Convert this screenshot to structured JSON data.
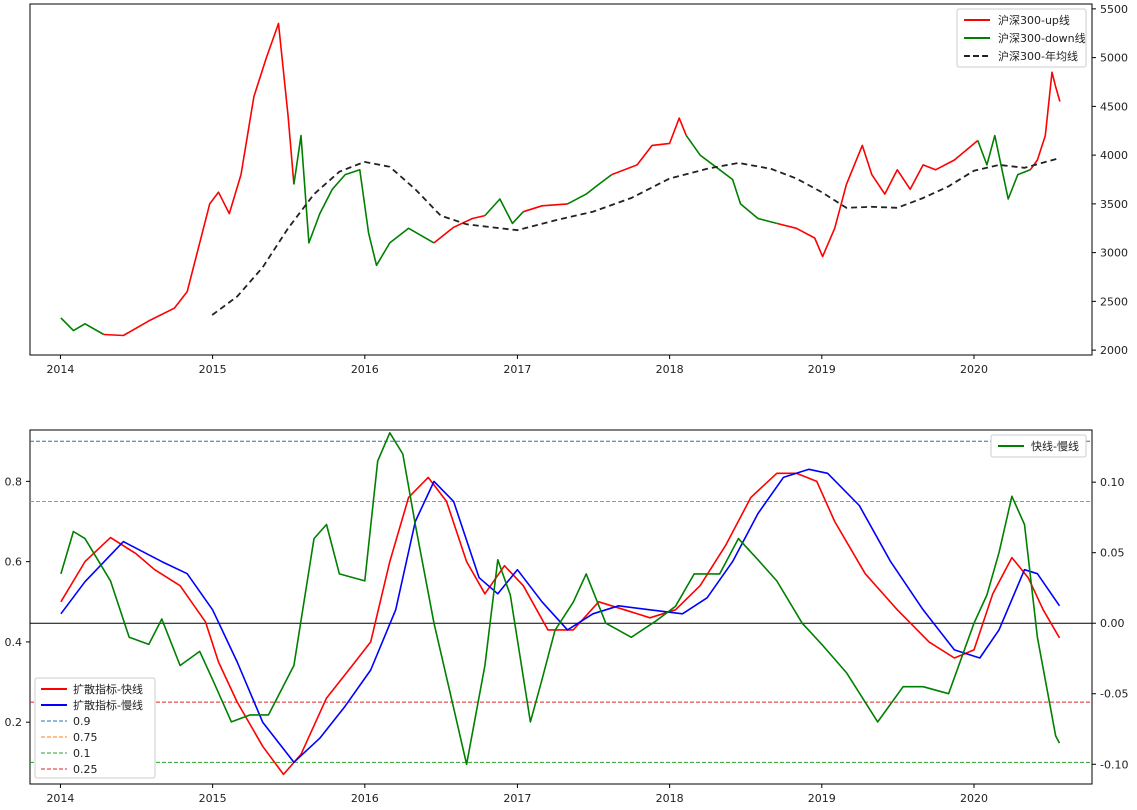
{
  "chart_data": [
    {
      "type": "line",
      "title": "",
      "xlabel": "",
      "ylabel": "",
      "xlim": [
        "2013-10-20",
        "2020-10-10"
      ],
      "ylim": [
        1950,
        5550
      ],
      "y_axis_side": "right",
      "xticks": [
        "2014",
        "2015",
        "2016",
        "2017",
        "2018",
        "2019",
        "2020"
      ],
      "yticks": [
        2000,
        2500,
        3000,
        3500,
        4000,
        4500,
        5000,
        5500
      ],
      "legend": {
        "position": "top-right",
        "entries": [
          "沪深300-up线",
          "沪深300-down线",
          "沪深300-年均线"
        ]
      },
      "colors": {
        "up": "#ff0000",
        "down": "#008000",
        "avg": "#222222"
      },
      "series": [
        {
          "name": "沪深300-up线",
          "style": "solid",
          "color": "#ff0000",
          "segments": [
            {
              "x": [
                "2014-04-15",
                "2014-06-01",
                "2014-08-01",
                "2014-10-01",
                "2014-11-01",
                "2014-12-01",
                "2014-12-25",
                "2015-01-15",
                "2015-02-10",
                "2015-03-10",
                "2015-04-10",
                "2015-05-10",
                "2015-06-08",
                "2015-07-01",
                "2015-07-15"
              ],
              "values": [
                2160,
                2150,
                2300,
                2430,
                2600,
                3100,
                3500,
                3620,
                3400,
                3800,
                4600,
                5000,
                5350,
                4400,
                3700
              ]
            },
            {
              "x": [
                "2016-06-15",
                "2016-08-01",
                "2016-09-15",
                "2016-10-15"
              ],
              "values": [
                3100,
                3260,
                3350,
                3380
              ]
            },
            {
              "x": [
                "2017-01-15",
                "2017-03-01",
                "2017-05-01"
              ],
              "values": [
                3420,
                3480,
                3500
              ]
            },
            {
              "x": [
                "2017-08-15",
                "2017-10-15",
                "2017-11-20",
                "2018-01-01",
                "2018-01-24",
                "2018-02-10"
              ],
              "values": [
                3800,
                3900,
                4100,
                4120,
                4380,
                4200
              ]
            },
            {
              "x": [
                "2018-09-15",
                "2018-11-01",
                "2018-12-15",
                "2019-01-03",
                "2019-02-01",
                "2019-03-01",
                "2019-04-08",
                "2019-05-01",
                "2019-06-01",
                "2019-07-01",
                "2019-08-01",
                "2019-09-01",
                "2019-10-01",
                "2019-11-15",
                "2020-01-10"
              ],
              "values": [
                3300,
                3250,
                3150,
                2960,
                3250,
                3700,
                4100,
                3800,
                3600,
                3850,
                3650,
                3900,
                3850,
                3950,
                4150
              ]
            },
            {
              "x": [
                "2020-05-15",
                "2020-06-01",
                "2020-06-20",
                "2020-07-06",
                "2020-07-15",
                "2020-07-25"
              ],
              "values": [
                3850,
                3950,
                4200,
                4850,
                4700,
                4550
              ]
            }
          ]
        },
        {
          "name": "沪深300-down线",
          "style": "solid",
          "color": "#008000",
          "segments": [
            {
              "x": [
                "2014-01-02",
                "2014-02-01",
                "2014-03-01",
                "2014-04-15"
              ],
              "values": [
                2330,
                2200,
                2270,
                2160
              ]
            },
            {
              "x": [
                "2015-07-15",
                "2015-08-01",
                "2015-08-20",
                "2015-09-15",
                "2015-10-15",
                "2015-11-15",
                "2015-12-20",
                "2016-01-10",
                "2016-01-29",
                "2016-03-01",
                "2016-04-15",
                "2016-06-15"
              ],
              "values": [
                3700,
                4200,
                3100,
                3400,
                3650,
                3800,
                3850,
                3200,
                2870,
                3100,
                3250,
                3100
              ]
            },
            {
              "x": [
                "2016-10-15",
                "2016-11-20",
                "2016-12-20",
                "2017-01-15"
              ],
              "values": [
                3380,
                3550,
                3300,
                3420
              ]
            },
            {
              "x": [
                "2017-05-01",
                "2017-06-15",
                "2017-07-15",
                "2017-08-15"
              ],
              "values": [
                3500,
                3600,
                3700,
                3800
              ]
            },
            {
              "x": [
                "2018-02-10",
                "2018-03-15",
                "2018-05-01",
                "2018-06-01",
                "2018-06-20",
                "2018-08-01",
                "2018-09-15"
              ],
              "values": [
                4200,
                4000,
                3850,
                3750,
                3500,
                3350,
                3300
              ]
            },
            {
              "x": [
                "2020-01-10",
                "2020-02-01",
                "2020-02-20",
                "2020-03-23",
                "2020-04-15",
                "2020-05-15"
              ],
              "values": [
                4150,
                3900,
                4200,
                3550,
                3800,
                3850
              ]
            }
          ]
        },
        {
          "name": "沪深300-年均线",
          "style": "dashed",
          "color": "#222222",
          "x": [
            "2014-12-31",
            "2015-03-01",
            "2015-05-01",
            "2015-07-01",
            "2015-09-01",
            "2015-11-01",
            "2015-12-31",
            "2016-03-01",
            "2016-05-01",
            "2016-07-01",
            "2016-09-01",
            "2016-11-01",
            "2017-01-01",
            "2017-04-01",
            "2017-07-01",
            "2017-10-01",
            "2018-01-01",
            "2018-04-01",
            "2018-06-15",
            "2018-09-01",
            "2018-11-01",
            "2019-01-01",
            "2019-03-01",
            "2019-05-01",
            "2019-07-01",
            "2019-09-01",
            "2019-11-01",
            "2020-01-01",
            "2020-03-01",
            "2020-05-01",
            "2020-07-24"
          ],
          "values": [
            2360,
            2550,
            2850,
            3250,
            3600,
            3830,
            3930,
            3880,
            3650,
            3380,
            3290,
            3260,
            3230,
            3330,
            3420,
            3560,
            3760,
            3860,
            3920,
            3860,
            3760,
            3620,
            3460,
            3470,
            3460,
            3560,
            3680,
            3840,
            3900,
            3870,
            3970
          ]
        }
      ]
    },
    {
      "type": "line",
      "title": "",
      "xlabel": "",
      "ylabel": "",
      "xlim": [
        "2013-10-20",
        "2020-10-10"
      ],
      "ylim": [
        0.046,
        0.928
      ],
      "ylim_right": [
        -0.114,
        0.137
      ],
      "xticks": [
        "2014",
        "2015",
        "2016",
        "2017",
        "2018",
        "2019",
        "2020"
      ],
      "yticks": [
        0.2,
        0.4,
        0.6,
        0.8
      ],
      "yticks_right": [
        -0.1,
        -0.05,
        0.0,
        0.05,
        0.1
      ],
      "legend_left": {
        "position": "lower-left",
        "entries": [
          "扩散指标-快线",
          "扩散指标-慢线",
          "0.9",
          "0.75",
          "0.1",
          "0.25"
        ]
      },
      "legend_right": {
        "position": "top-right",
        "entries": [
          "快线-慢线"
        ]
      },
      "hlines": [
        {
          "name": "0.9",
          "value": 0.9,
          "color": "#1f77b4",
          "axis": "left"
        },
        {
          "name": "0.75",
          "value": 0.75,
          "color": "#ff7f0e",
          "axis": "left"
        },
        {
          "name": "0.1",
          "value": 0.1,
          "color": "#2ca02c",
          "axis": "left"
        },
        {
          "name": "0.25",
          "value": 0.25,
          "color": "#d62728",
          "axis": "left"
        },
        {
          "name": "zero",
          "value": 0.0,
          "color": "#000000",
          "axis": "right"
        }
      ],
      "series": [
        {
          "name": "扩散指标-快线",
          "axis": "left",
          "color": "#ff0000",
          "x": [
            "2014-01-02",
            "2014-03-01",
            "2014-05-01",
            "2014-07-01",
            "2014-08-15",
            "2014-10-15",
            "2014-12-15",
            "2015-01-15",
            "2015-03-01",
            "2015-05-01",
            "2015-06-20",
            "2015-08-01",
            "2015-10-01",
            "2015-12-01",
            "2016-01-15",
            "2016-03-01",
            "2016-04-15",
            "2016-06-01",
            "2016-07-15",
            "2016-09-01",
            "2016-10-15",
            "2016-12-01",
            "2017-01-15",
            "2017-03-15",
            "2017-05-15",
            "2017-07-15",
            "2017-09-15",
            "2017-11-15",
            "2018-01-15",
            "2018-03-15",
            "2018-05-15",
            "2018-07-15",
            "2018-09-15",
            "2018-11-01",
            "2018-12-20",
            "2019-02-01",
            "2019-04-15",
            "2019-07-01",
            "2019-09-15",
            "2019-11-15",
            "2020-01-01",
            "2020-02-15",
            "2020-04-01",
            "2020-05-10",
            "2020-06-15",
            "2020-07-24"
          ],
          "values": [
            0.5,
            0.6,
            0.66,
            0.62,
            0.58,
            0.54,
            0.45,
            0.35,
            0.25,
            0.14,
            0.07,
            0.12,
            0.26,
            0.34,
            0.4,
            0.6,
            0.76,
            0.81,
            0.75,
            0.6,
            0.52,
            0.59,
            0.54,
            0.43,
            0.43,
            0.5,
            0.48,
            0.46,
            0.48,
            0.54,
            0.64,
            0.76,
            0.82,
            0.82,
            0.8,
            0.7,
            0.57,
            0.48,
            0.4,
            0.36,
            0.38,
            0.52,
            0.61,
            0.56,
            0.48,
            0.41
          ]
        },
        {
          "name": "扩散指标-慢线",
          "axis": "left",
          "color": "#0000ff",
          "x": [
            "2014-01-02",
            "2014-03-01",
            "2014-06-01",
            "2014-09-01",
            "2014-11-01",
            "2015-01-01",
            "2015-03-01",
            "2015-05-01",
            "2015-07-15",
            "2015-09-15",
            "2015-11-15",
            "2016-01-15",
            "2016-03-15",
            "2016-05-01",
            "2016-06-15",
            "2016-08-01",
            "2016-10-01",
            "2016-11-15",
            "2017-01-01",
            "2017-03-01",
            "2017-05-01",
            "2017-07-01",
            "2017-09-01",
            "2017-11-15",
            "2018-02-01",
            "2018-04-01",
            "2018-06-01",
            "2018-08-01",
            "2018-10-01",
            "2018-12-01",
            "2019-01-15",
            "2019-04-01",
            "2019-06-15",
            "2019-09-01",
            "2019-11-15",
            "2020-01-15",
            "2020-03-01",
            "2020-05-01",
            "2020-06-01",
            "2020-07-24"
          ],
          "values": [
            0.47,
            0.55,
            0.65,
            0.6,
            0.57,
            0.48,
            0.35,
            0.2,
            0.1,
            0.16,
            0.24,
            0.33,
            0.48,
            0.7,
            0.8,
            0.75,
            0.56,
            0.52,
            0.58,
            0.5,
            0.43,
            0.47,
            0.49,
            0.48,
            0.47,
            0.51,
            0.6,
            0.72,
            0.81,
            0.83,
            0.82,
            0.74,
            0.6,
            0.48,
            0.38,
            0.36,
            0.43,
            0.58,
            0.57,
            0.49
          ]
        },
        {
          "name": "快线-慢线",
          "axis": "right",
          "color": "#008000",
          "x": [
            "2014-01-02",
            "2014-02-01",
            "2014-03-01",
            "2014-05-01",
            "2014-06-15",
            "2014-08-01",
            "2014-09-01",
            "2014-10-15",
            "2014-12-01",
            "2015-01-01",
            "2015-02-15",
            "2015-04-01",
            "2015-05-15",
            "2015-07-15",
            "2015-09-01",
            "2015-10-01",
            "2015-11-01",
            "2016-01-01",
            "2016-02-01",
            "2016-03-01",
            "2016-04-01",
            "2016-05-01",
            "2016-06-15",
            "2016-08-01",
            "2016-09-01",
            "2016-10-15",
            "2016-11-15",
            "2016-12-15",
            "2017-02-01",
            "2017-03-01",
            "2017-04-01",
            "2017-05-15",
            "2017-06-15",
            "2017-08-01",
            "2017-10-01",
            "2017-12-01",
            "2018-01-15",
            "2018-03-01",
            "2018-05-01",
            "2018-06-15",
            "2018-08-01",
            "2018-09-15",
            "2018-11-15",
            "2019-01-01",
            "2019-03-01",
            "2019-05-15",
            "2019-07-15",
            "2019-09-01",
            "2019-11-01",
            "2020-01-01",
            "2020-02-01",
            "2020-03-01",
            "2020-04-01",
            "2020-05-01",
            "2020-06-01",
            "2020-07-15",
            "2020-07-24"
          ],
          "values": [
            0.035,
            0.065,
            0.06,
            0.03,
            -0.01,
            -0.015,
            0.003,
            -0.03,
            -0.02,
            -0.04,
            -0.07,
            -0.065,
            -0.065,
            -0.03,
            0.06,
            0.07,
            0.035,
            0.03,
            0.115,
            0.135,
            0.12,
            0.07,
            0.0,
            -0.06,
            -0.1,
            -0.03,
            0.045,
            0.02,
            -0.07,
            -0.04,
            -0.005,
            0.015,
            0.035,
            0.0,
            -0.01,
            0.002,
            0.012,
            0.035,
            0.035,
            0.06,
            0.045,
            0.03,
            0.0,
            -0.015,
            -0.035,
            -0.07,
            -0.045,
            -0.045,
            -0.05,
            0.0,
            0.02,
            0.05,
            0.09,
            0.07,
            -0.01,
            -0.08,
            -0.085
          ]
        }
      ]
    }
  ]
}
